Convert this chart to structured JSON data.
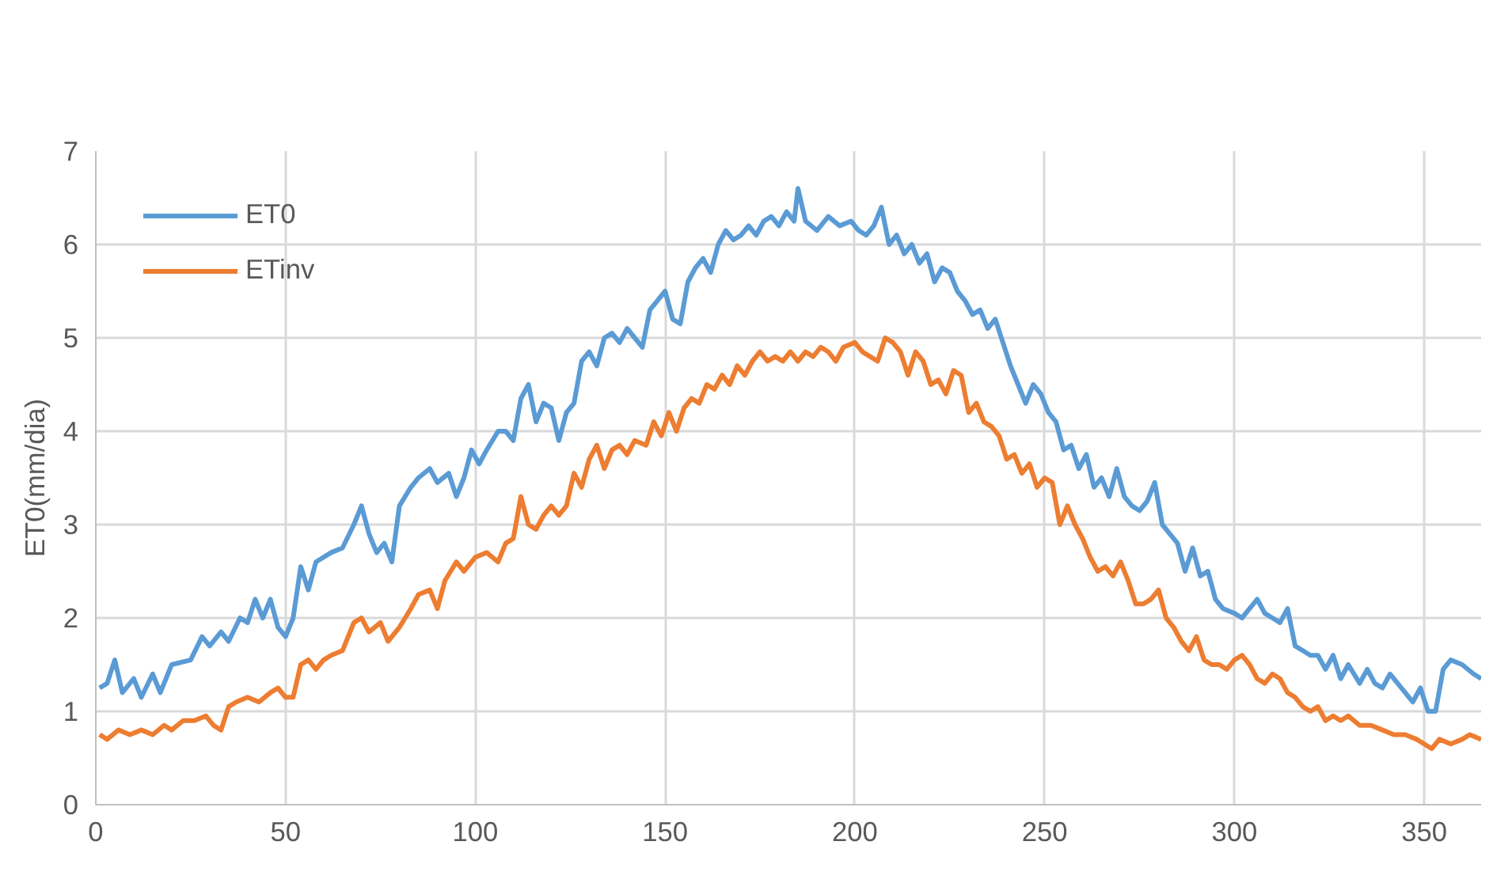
{
  "chart_data": {
    "type": "line",
    "ylabel": "ET0(mm/dia)",
    "xlim": [
      0,
      365
    ],
    "xticks": [
      0,
      50,
      100,
      150,
      200,
      250,
      300,
      350
    ],
    "ylim": [
      0,
      7
    ],
    "yticks": [
      0,
      1,
      2,
      3,
      4,
      5,
      6,
      7
    ],
    "grid": true,
    "legend": "top left",
    "marker": "none",
    "line_style": "solid",
    "series": [
      {
        "name": "ET0",
        "color": "#5b9bd5",
        "x": [
          1,
          3,
          5,
          7,
          10,
          12,
          15,
          17,
          20,
          25,
          28,
          30,
          33,
          35,
          38,
          40,
          42,
          44,
          46,
          48,
          50,
          52,
          54,
          56,
          58,
          62,
          65,
          68,
          70,
          72,
          74,
          76,
          78,
          80,
          83,
          85,
          88,
          90,
          93,
          95,
          97,
          99,
          101,
          103,
          106,
          108,
          110,
          112,
          114,
          116,
          118,
          120,
          122,
          124,
          126,
          128,
          130,
          132,
          134,
          136,
          138,
          140,
          142,
          144,
          146,
          148,
          150,
          152,
          154,
          156,
          158,
          160,
          162,
          164,
          166,
          168,
          170,
          172,
          174,
          176,
          178,
          180,
          182,
          184,
          185,
          187,
          190,
          193,
          196,
          199,
          201,
          203,
          205,
          207,
          209,
          211,
          213,
          215,
          217,
          219,
          221,
          223,
          225,
          227,
          229,
          231,
          233,
          235,
          237,
          239,
          241,
          243,
          245,
          247,
          249,
          251,
          253,
          255,
          257,
          259,
          261,
          263,
          265,
          267,
          269,
          271,
          273,
          275,
          277,
          279,
          281,
          283,
          285,
          287,
          289,
          291,
          293,
          295,
          297,
          300,
          302,
          304,
          306,
          308,
          310,
          312,
          314,
          316,
          318,
          320,
          322,
          324,
          326,
          328,
          330,
          333,
          335,
          337,
          339,
          341,
          343,
          345,
          347,
          349,
          351,
          353,
          355,
          357,
          360,
          363,
          365
        ],
        "values": [
          1.25,
          1.3,
          1.55,
          1.2,
          1.35,
          1.15,
          1.4,
          1.2,
          1.5,
          1.55,
          1.8,
          1.7,
          1.85,
          1.75,
          2.0,
          1.95,
          2.2,
          2.0,
          2.2,
          1.9,
          1.8,
          2.0,
          2.55,
          2.3,
          2.6,
          2.7,
          2.75,
          3.0,
          3.2,
          2.9,
          2.7,
          2.8,
          2.6,
          3.2,
          3.4,
          3.5,
          3.6,
          3.45,
          3.55,
          3.3,
          3.5,
          3.8,
          3.65,
          3.8,
          4.0,
          4.0,
          3.9,
          4.35,
          4.5,
          4.1,
          4.3,
          4.25,
          3.9,
          4.2,
          4.3,
          4.75,
          4.85,
          4.7,
          5.0,
          5.05,
          4.95,
          5.1,
          5.0,
          4.9,
          5.3,
          5.4,
          5.5,
          5.2,
          5.15,
          5.6,
          5.75,
          5.85,
          5.7,
          6.0,
          6.15,
          6.05,
          6.1,
          6.2,
          6.1,
          6.25,
          6.3,
          6.2,
          6.35,
          6.25,
          6.6,
          6.25,
          6.15,
          6.3,
          6.2,
          6.25,
          6.15,
          6.1,
          6.2,
          6.4,
          6.0,
          6.1,
          5.9,
          6.0,
          5.8,
          5.9,
          5.6,
          5.75,
          5.7,
          5.5,
          5.4,
          5.25,
          5.3,
          5.1,
          5.2,
          4.95,
          4.7,
          4.5,
          4.3,
          4.5,
          4.4,
          4.2,
          4.1,
          3.8,
          3.85,
          3.6,
          3.75,
          3.4,
          3.5,
          3.3,
          3.6,
          3.3,
          3.2,
          3.15,
          3.25,
          3.45,
          3.0,
          2.9,
          2.8,
          2.5,
          2.75,
          2.45,
          2.5,
          2.2,
          2.1,
          2.05,
          2.0,
          2.1,
          2.2,
          2.05,
          2.0,
          1.95,
          2.1,
          1.7,
          1.65,
          1.6,
          1.6,
          1.45,
          1.6,
          1.35,
          1.5,
          1.3,
          1.45,
          1.3,
          1.25,
          1.4,
          1.3,
          1.2,
          1.1,
          1.25,
          1.0,
          1.0,
          1.45,
          1.55,
          1.5,
          1.4,
          1.35
        ]
      },
      {
        "name": "ETinv",
        "color": "#ed7d31",
        "x": [
          1,
          3,
          6,
          9,
          12,
          15,
          18,
          20,
          23,
          26,
          29,
          31,
          33,
          35,
          37,
          40,
          43,
          46,
          48,
          50,
          52,
          54,
          56,
          58,
          60,
          62,
          65,
          68,
          70,
          72,
          75,
          77,
          80,
          83,
          85,
          88,
          90,
          92,
          95,
          97,
          100,
          103,
          106,
          108,
          110,
          112,
          114,
          116,
          118,
          120,
          122,
          124,
          126,
          128,
          130,
          132,
          134,
          136,
          138,
          140,
          142,
          145,
          147,
          149,
          151,
          153,
          155,
          157,
          159,
          161,
          163,
          165,
          167,
          169,
          171,
          173,
          175,
          177,
          179,
          181,
          183,
          185,
          187,
          189,
          191,
          193,
          195,
          197,
          200,
          202,
          204,
          206,
          208,
          210,
          212,
          214,
          216,
          218,
          220,
          222,
          224,
          226,
          228,
          230,
          232,
          234,
          236,
          238,
          240,
          242,
          244,
          246,
          248,
          250,
          252,
          254,
          256,
          258,
          260,
          262,
          264,
          266,
          268,
          270,
          272,
          274,
          276,
          278,
          280,
          282,
          284,
          286,
          288,
          290,
          292,
          294,
          296,
          298,
          300,
          302,
          304,
          306,
          308,
          310,
          312,
          314,
          316,
          318,
          320,
          322,
          324,
          326,
          328,
          330,
          333,
          336,
          339,
          342,
          345,
          348,
          350,
          352,
          354,
          357,
          360,
          362,
          365
        ],
        "values": [
          0.75,
          0.7,
          0.8,
          0.75,
          0.8,
          0.75,
          0.85,
          0.8,
          0.9,
          0.9,
          0.95,
          0.85,
          0.8,
          1.05,
          1.1,
          1.15,
          1.1,
          1.2,
          1.25,
          1.15,
          1.15,
          1.5,
          1.55,
          1.45,
          1.55,
          1.6,
          1.65,
          1.95,
          2.0,
          1.85,
          1.95,
          1.75,
          1.9,
          2.1,
          2.25,
          2.3,
          2.1,
          2.4,
          2.6,
          2.5,
          2.65,
          2.7,
          2.6,
          2.8,
          2.85,
          3.3,
          3.0,
          2.95,
          3.1,
          3.2,
          3.1,
          3.2,
          3.55,
          3.4,
          3.7,
          3.85,
          3.6,
          3.8,
          3.85,
          3.75,
          3.9,
          3.85,
          4.1,
          3.95,
          4.2,
          4.0,
          4.25,
          4.35,
          4.3,
          4.5,
          4.45,
          4.6,
          4.5,
          4.7,
          4.6,
          4.75,
          4.85,
          4.75,
          4.8,
          4.75,
          4.85,
          4.75,
          4.85,
          4.8,
          4.9,
          4.85,
          4.75,
          4.9,
          4.95,
          4.85,
          4.8,
          4.75,
          5.0,
          4.95,
          4.85,
          4.6,
          4.85,
          4.75,
          4.5,
          4.55,
          4.4,
          4.65,
          4.6,
          4.2,
          4.3,
          4.1,
          4.05,
          3.95,
          3.7,
          3.75,
          3.55,
          3.65,
          3.4,
          3.5,
          3.45,
          3.0,
          3.2,
          3.0,
          2.85,
          2.65,
          2.5,
          2.55,
          2.45,
          2.6,
          2.4,
          2.15,
          2.15,
          2.2,
          2.3,
          2.0,
          1.9,
          1.75,
          1.65,
          1.8,
          1.55,
          1.5,
          1.5,
          1.45,
          1.55,
          1.6,
          1.5,
          1.35,
          1.3,
          1.4,
          1.35,
          1.2,
          1.15,
          1.05,
          1.0,
          1.05,
          0.9,
          0.95,
          0.9,
          0.95,
          0.85,
          0.85,
          0.8,
          0.75,
          0.75,
          0.7,
          0.65,
          0.6,
          0.7,
          0.65,
          0.7,
          0.75,
          0.7
        ]
      }
    ]
  }
}
